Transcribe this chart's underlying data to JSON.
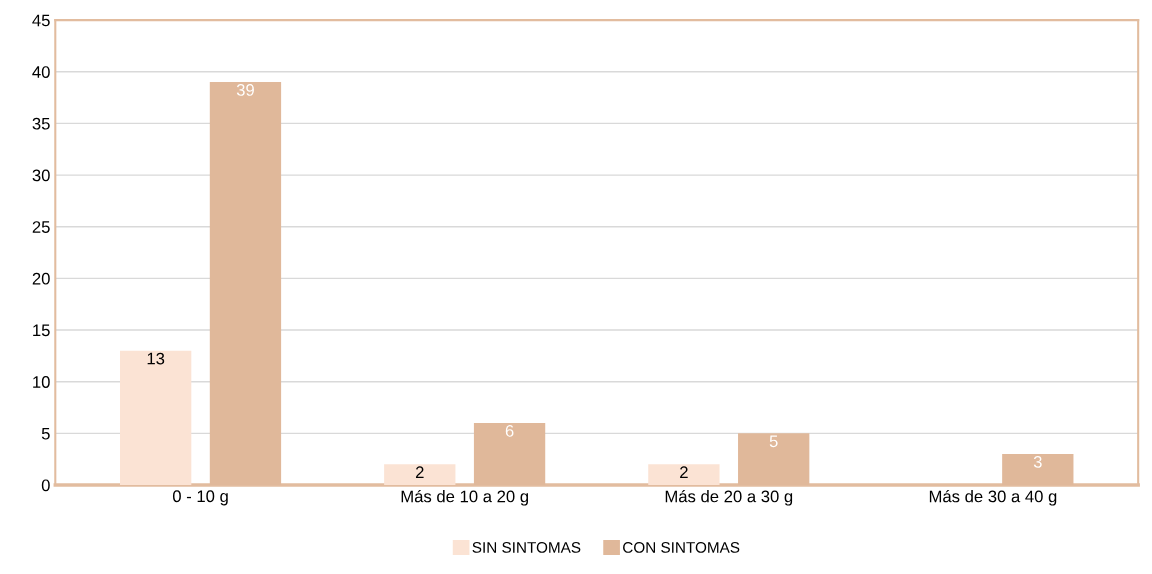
{
  "chart_data": {
    "type": "bar",
    "categories": [
      "0 - 10 g",
      "Más de 10 a 20 g",
      "Más de 20 a 30 g",
      "Más de 30 a 40 g"
    ],
    "series": [
      {
        "name": "SIN SINTOMAS",
        "color": "#fbe3d4",
        "values": [
          13,
          2,
          2,
          null
        ],
        "value_labels": [
          "13",
          "2",
          "2",
          null
        ]
      },
      {
        "name": "CON SINTOMAS",
        "color": "#e0b89a",
        "values": [
          39,
          6,
          5,
          3
        ],
        "value_labels": [
          "39",
          "6",
          "5",
          "3"
        ]
      }
    ],
    "ylim": [
      0,
      45
    ],
    "yticks": [
      0,
      5,
      10,
      15,
      20,
      25,
      30,
      35,
      40,
      45
    ],
    "grid": "y",
    "legend": "bottom"
  }
}
